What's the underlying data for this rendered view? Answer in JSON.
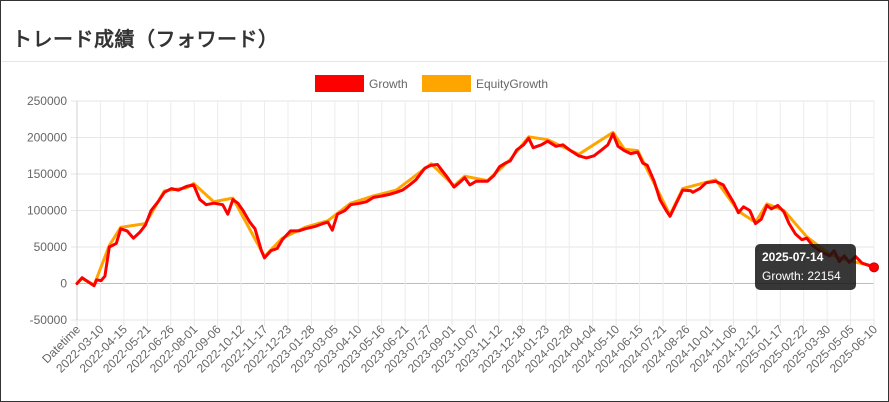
{
  "page": {
    "title": "トレード成績（フォワード）"
  },
  "chart_data": {
    "type": "line",
    "xlabel": "Datetime",
    "ylabel": "",
    "ylim": [
      -50000,
      250000
    ],
    "yticks": [
      250000,
      200000,
      150000,
      100000,
      50000,
      0,
      -50000
    ],
    "x_start": "2022-02-02",
    "x_end": "2025-07-14",
    "xticks": [
      "Datetime",
      "2022-03-10",
      "2022-04-15",
      "2022-05-21",
      "2022-06-26",
      "2022-08-01",
      "2022-09-06",
      "2022-10-12",
      "2022-11-17",
      "2022-12-23",
      "2023-01-28",
      "2023-03-05",
      "2023-04-10",
      "2023-05-16",
      "2023-06-21",
      "2023-07-27",
      "2023-09-01",
      "2023-10-07",
      "2023-11-12",
      "2023-12-18",
      "2024-01-23",
      "2024-02-28",
      "2024-04-04",
      "2024-05-10",
      "2024-06-15",
      "2024-07-21",
      "2024-08-26",
      "2024-10-01",
      "2024-11-06",
      "2024-12-12",
      "2025-01-17",
      "2025-02-22",
      "2025-03-30",
      "2025-05-05",
      "2025-06-10"
    ],
    "grid": true,
    "legend_position": "top",
    "series": [
      {
        "name": "Growth",
        "color": "#ff0000",
        "points": [
          [
            "2022-02-02",
            0
          ],
          [
            "2022-02-10",
            8000
          ],
          [
            "2022-02-20",
            2000
          ],
          [
            "2022-03-01",
            -3000
          ],
          [
            "2022-03-05",
            5000
          ],
          [
            "2022-03-12",
            4000
          ],
          [
            "2022-03-18",
            10000
          ],
          [
            "2022-03-25",
            50000
          ],
          [
            "2022-04-05",
            55000
          ],
          [
            "2022-04-12",
            75000
          ],
          [
            "2022-04-22",
            72000
          ],
          [
            "2022-05-02",
            62000
          ],
          [
            "2022-05-12",
            70000
          ],
          [
            "2022-05-21",
            80000
          ],
          [
            "2022-05-30",
            100000
          ],
          [
            "2022-06-10",
            112000
          ],
          [
            "2022-06-20",
            125000
          ],
          [
            "2022-07-01",
            130000
          ],
          [
            "2022-07-12",
            128000
          ],
          [
            "2022-07-25",
            133000
          ],
          [
            "2022-08-05",
            135000
          ],
          [
            "2022-08-15",
            115000
          ],
          [
            "2022-08-25",
            108000
          ],
          [
            "2022-09-06",
            110000
          ],
          [
            "2022-09-20",
            108000
          ],
          [
            "2022-09-28",
            95000
          ],
          [
            "2022-10-06",
            115000
          ],
          [
            "2022-10-14",
            110000
          ],
          [
            "2022-10-22",
            100000
          ],
          [
            "2022-11-01",
            85000
          ],
          [
            "2022-11-10",
            75000
          ],
          [
            "2022-11-15",
            60000
          ],
          [
            "2022-11-20",
            45000
          ],
          [
            "2022-11-25",
            35000
          ],
          [
            "2022-12-05",
            45000
          ],
          [
            "2022-12-15",
            48000
          ],
          [
            "2022-12-23",
            60000
          ],
          [
            "2023-01-05",
            72000
          ],
          [
            "2023-01-18",
            72000
          ],
          [
            "2023-01-28",
            75000
          ],
          [
            "2023-02-12",
            78000
          ],
          [
            "2023-02-25",
            82000
          ],
          [
            "2023-03-05",
            84000
          ],
          [
            "2023-03-12",
            73000
          ],
          [
            "2023-03-20",
            95000
          ],
          [
            "2023-04-01",
            100000
          ],
          [
            "2023-04-10",
            108000
          ],
          [
            "2023-04-25",
            110000
          ],
          [
            "2023-05-05",
            112000
          ],
          [
            "2023-05-16",
            118000
          ],
          [
            "2023-05-30",
            120000
          ],
          [
            "2023-06-10",
            122000
          ],
          [
            "2023-06-21",
            125000
          ],
          [
            "2023-07-01",
            128000
          ],
          [
            "2023-07-12",
            135000
          ],
          [
            "2023-07-22",
            142000
          ],
          [
            "2023-08-05",
            158000
          ],
          [
            "2023-08-15",
            162000
          ],
          [
            "2023-08-25",
            163000
          ],
          [
            "2023-09-01",
            155000
          ],
          [
            "2023-09-10",
            145000
          ],
          [
            "2023-09-20",
            132000
          ],
          [
            "2023-10-01",
            140000
          ],
          [
            "2023-10-07",
            145000
          ],
          [
            "2023-10-15",
            135000
          ],
          [
            "2023-10-25",
            140000
          ],
          [
            "2023-11-05",
            140000
          ],
          [
            "2023-11-12",
            140000
          ],
          [
            "2023-11-22",
            148000
          ],
          [
            "2023-12-01",
            160000
          ],
          [
            "2023-12-10",
            165000
          ],
          [
            "2023-12-18",
            168000
          ],
          [
            "2023-12-28",
            183000
          ],
          [
            "2024-01-08",
            190000
          ],
          [
            "2024-01-16",
            199000
          ],
          [
            "2024-01-23",
            186000
          ],
          [
            "2024-02-05",
            190000
          ],
          [
            "2024-02-15",
            195000
          ],
          [
            "2024-02-28",
            188000
          ],
          [
            "2024-03-10",
            190000
          ],
          [
            "2024-03-22",
            182000
          ],
          [
            "2024-04-04",
            175000
          ],
          [
            "2024-04-16",
            172000
          ],
          [
            "2024-04-28",
            175000
          ],
          [
            "2024-05-10",
            183000
          ],
          [
            "2024-05-20",
            190000
          ],
          [
            "2024-05-28",
            205000
          ],
          [
            "2024-06-05",
            188000
          ],
          [
            "2024-06-15",
            182000
          ],
          [
            "2024-06-25",
            178000
          ],
          [
            "2024-07-06",
            180000
          ],
          [
            "2024-07-14",
            165000
          ],
          [
            "2024-07-21",
            162000
          ],
          [
            "2024-08-01",
            140000
          ],
          [
            "2024-08-10",
            115000
          ],
          [
            "2024-08-20",
            100000
          ],
          [
            "2024-08-26",
            92000
          ],
          [
            "2024-09-05",
            110000
          ],
          [
            "2024-09-15",
            128000
          ],
          [
            "2024-09-28",
            127000
          ],
          [
            "2024-10-01",
            125000
          ],
          [
            "2024-10-12",
            130000
          ],
          [
            "2024-10-22",
            138000
          ],
          [
            "2024-11-06",
            140000
          ],
          [
            "2024-11-18",
            135000
          ],
          [
            "2024-11-28",
            120000
          ],
          [
            "2024-12-05",
            110000
          ],
          [
            "2024-12-12",
            97000
          ],
          [
            "2024-12-20",
            105000
          ],
          [
            "2024-12-30",
            100000
          ],
          [
            "2025-01-08",
            82000
          ],
          [
            "2025-01-17",
            88000
          ],
          [
            "2025-01-26",
            107000
          ],
          [
            "2025-02-02",
            102000
          ],
          [
            "2025-02-12",
            107000
          ],
          [
            "2025-02-22",
            98000
          ],
          [
            "2025-03-02",
            82000
          ],
          [
            "2025-03-12",
            68000
          ],
          [
            "2025-03-22",
            60000
          ],
          [
            "2025-03-30",
            62000
          ],
          [
            "2025-04-08",
            52000
          ],
          [
            "2025-04-16",
            47000
          ],
          [
            "2025-04-24",
            42000
          ],
          [
            "2025-05-05",
            38000
          ],
          [
            "2025-05-12",
            45000
          ],
          [
            "2025-05-20",
            30000
          ],
          [
            "2025-05-28",
            38000
          ],
          [
            "2025-06-05",
            29000
          ],
          [
            "2025-06-15",
            37000
          ],
          [
            "2025-06-25",
            28000
          ],
          [
            "2025-07-05",
            25000
          ],
          [
            "2025-07-14",
            22154
          ]
        ]
      },
      {
        "name": "EquityGrowth",
        "color": "#ffa500",
        "points": [
          [
            "2022-02-02",
            0
          ],
          [
            "2022-02-10",
            7000
          ],
          [
            "2022-03-01",
            -2000
          ],
          [
            "2022-03-25",
            52000
          ],
          [
            "2022-04-12",
            77000
          ],
          [
            "2022-05-21",
            82000
          ],
          [
            "2022-06-20",
            127000
          ],
          [
            "2022-07-25",
            131000
          ],
          [
            "2022-08-05",
            137000
          ],
          [
            "2022-09-06",
            112000
          ],
          [
            "2022-10-06",
            117000
          ],
          [
            "2022-11-25",
            37000
          ],
          [
            "2022-12-23",
            62000
          ],
          [
            "2023-01-28",
            77000
          ],
          [
            "2023-03-05",
            86000
          ],
          [
            "2023-04-10",
            110000
          ],
          [
            "2023-05-16",
            120000
          ],
          [
            "2023-06-21",
            128000
          ],
          [
            "2023-08-15",
            164000
          ],
          [
            "2023-09-20",
            134000
          ],
          [
            "2023-10-07",
            147000
          ],
          [
            "2023-11-12",
            141000
          ],
          [
            "2023-12-18",
            170000
          ],
          [
            "2024-01-16",
            201000
          ],
          [
            "2024-02-15",
            197000
          ],
          [
            "2024-04-04",
            177000
          ],
          [
            "2024-05-28",
            207000
          ],
          [
            "2024-06-15",
            184000
          ],
          [
            "2024-07-06",
            182000
          ],
          [
            "2024-08-26",
            94000
          ],
          [
            "2024-09-15",
            130000
          ],
          [
            "2024-11-06",
            142000
          ],
          [
            "2024-12-12",
            99000
          ],
          [
            "2025-01-08",
            84000
          ],
          [
            "2025-01-26",
            109000
          ],
          [
            "2025-02-22",
            100000
          ],
          [
            "2025-03-30",
            64000
          ],
          [
            "2025-05-05",
            40000
          ],
          [
            "2025-06-05",
            31000
          ],
          [
            "2025-07-14",
            24000
          ]
        ]
      }
    ],
    "tooltip": {
      "date": "2025-07-14",
      "text": "Growth: 22154"
    }
  }
}
